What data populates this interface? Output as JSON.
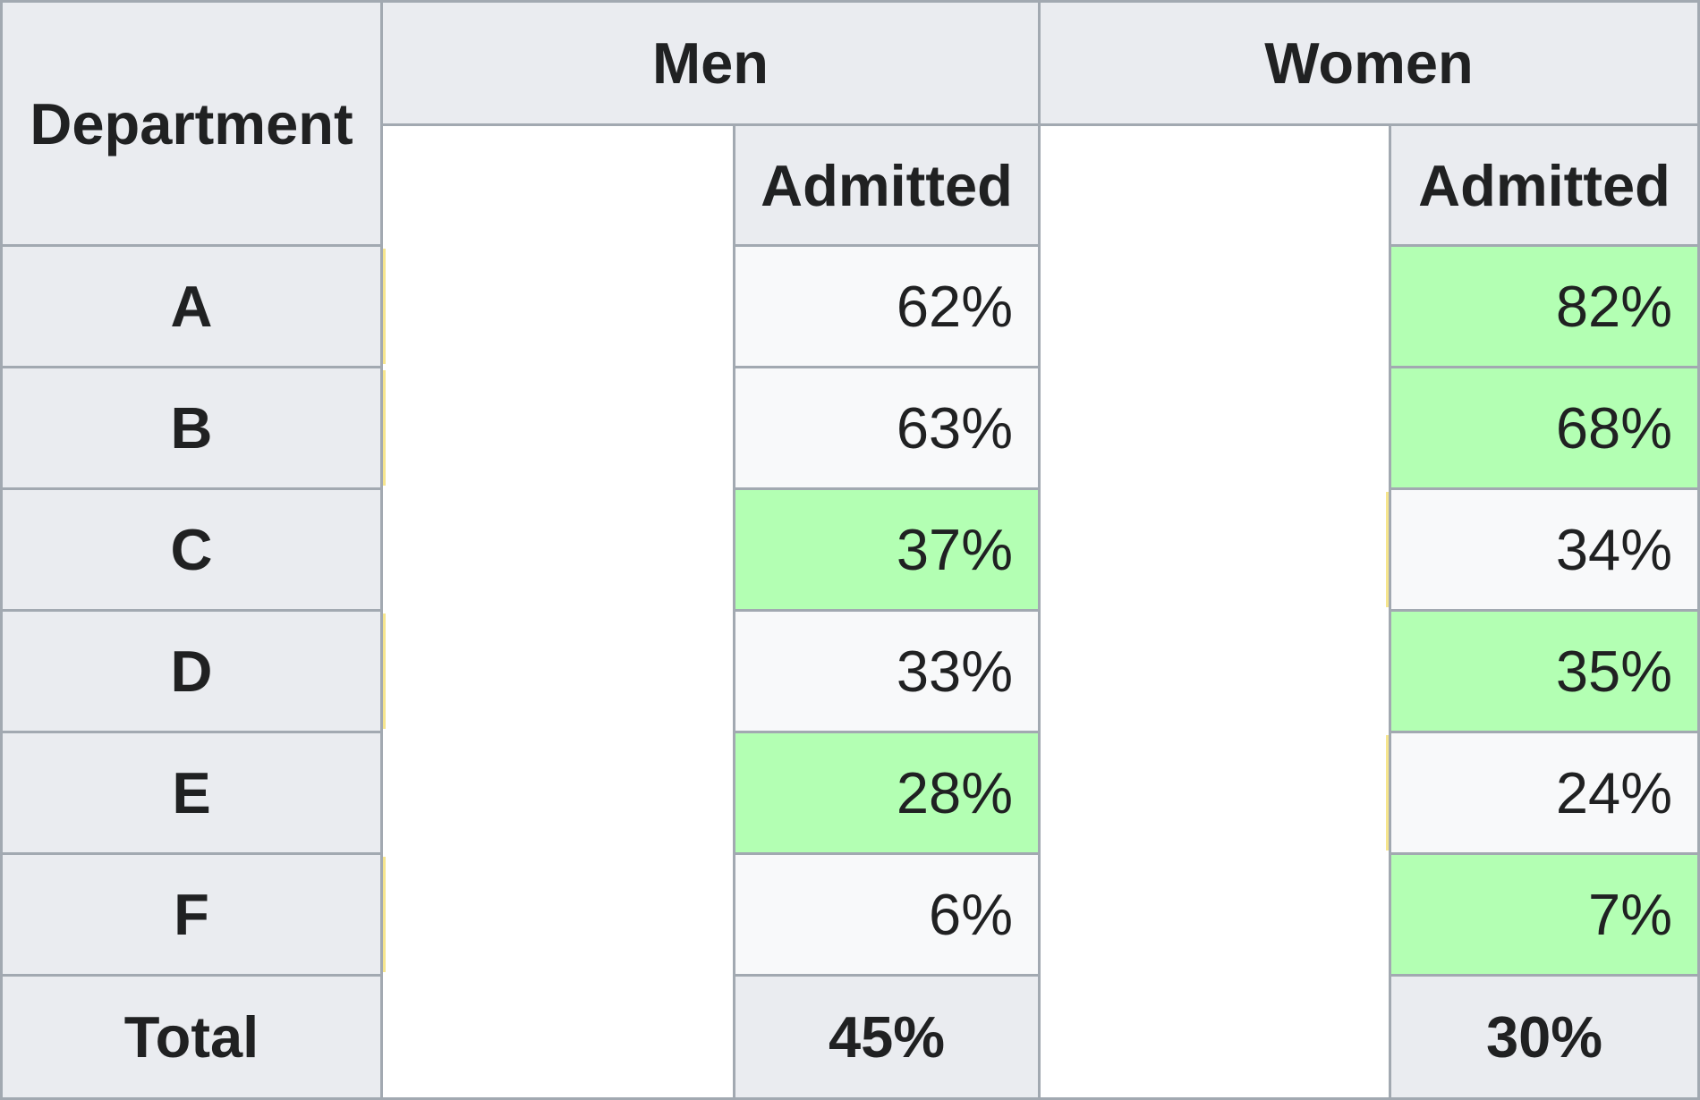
{
  "table": {
    "headers": {
      "department": "Department",
      "men": "Men",
      "women": "Women",
      "men_admitted": "Admitted",
      "women_admitted": "Admitted"
    },
    "rows": [
      {
        "department": "A",
        "men_admitted": "62%",
        "women_admitted": "82%",
        "men_highlight": false,
        "women_highlight": true
      },
      {
        "department": "B",
        "men_admitted": "63%",
        "women_admitted": "68%",
        "men_highlight": false,
        "women_highlight": true
      },
      {
        "department": "C",
        "men_admitted": "37%",
        "women_admitted": "34%",
        "men_highlight": true,
        "women_highlight": false
      },
      {
        "department": "D",
        "men_admitted": "33%",
        "women_admitted": "35%",
        "men_highlight": false,
        "women_highlight": true
      },
      {
        "department": "E",
        "men_admitted": "28%",
        "women_admitted": "24%",
        "men_highlight": true,
        "women_highlight": false
      },
      {
        "department": "F",
        "men_admitted": "6%",
        "women_admitted": "7%",
        "men_highlight": false,
        "women_highlight": true
      }
    ],
    "total": {
      "label": "Total",
      "men_admitted": "45%",
      "women_admitted": "30%"
    },
    "colors": {
      "header_bg": "#eaecf0",
      "cell_bg": "#f8f9fa",
      "highlight_bg": "#b3ffb3",
      "border": "#a2a9b1",
      "text": "#202122"
    }
  }
}
